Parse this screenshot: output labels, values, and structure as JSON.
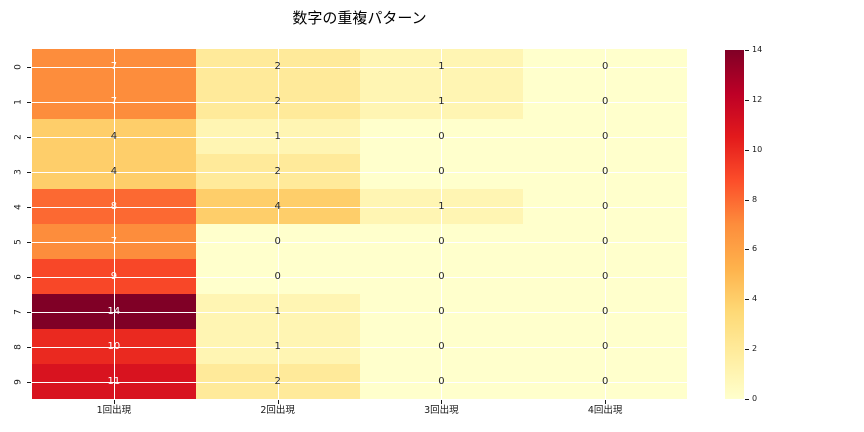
{
  "title": "数字の重複パターン",
  "chart_data": {
    "type": "heatmap",
    "title": "数字の重複パターン",
    "x_tick_labels": [
      "1回出現",
      "2回出現",
      "3回出現",
      "4回出現"
    ],
    "y_tick_labels": [
      "0",
      "1",
      "2",
      "3",
      "4",
      "5",
      "6",
      "7",
      "8",
      "9"
    ],
    "values": [
      [
        7,
        2,
        1,
        0
      ],
      [
        7,
        2,
        1,
        0
      ],
      [
        4,
        1,
        0,
        0
      ],
      [
        4,
        2,
        0,
        0
      ],
      [
        8,
        4,
        1,
        0
      ],
      [
        7,
        0,
        0,
        0
      ],
      [
        9,
        0,
        0,
        0
      ],
      [
        14,
        1,
        0,
        0
      ],
      [
        10,
        1,
        0,
        0
      ],
      [
        11,
        2,
        0,
        0
      ]
    ],
    "vmin": 0,
    "vmax": 14,
    "annotated": true,
    "colorbar_ticks": [
      "0",
      "2",
      "4",
      "6",
      "8",
      "10",
      "12",
      "14"
    ],
    "colormap_name": "YlOrRd",
    "colormap_stops": [
      "#ffffcc",
      "#ffeda0",
      "#fed976",
      "#feb24c",
      "#fd8d3c",
      "#fc4e2a",
      "#e31a1c",
      "#bd0026",
      "#800026"
    ],
    "grid_on": true,
    "grid_color": "#ffffff",
    "annotation_dark_color": "#262626",
    "annotation_light_color": "#ffffff",
    "background_color": "#ffffff",
    "legend_position": "right-colorbar"
  }
}
